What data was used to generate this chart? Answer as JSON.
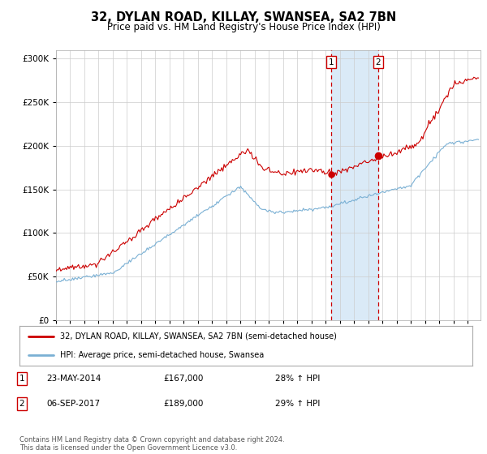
{
  "title": "32, DYLAN ROAD, KILLAY, SWANSEA, SA2 7BN",
  "subtitle": "Price paid vs. HM Land Registry's House Price Index (HPI)",
  "legend_line1": "32, DYLAN ROAD, KILLAY, SWANSEA, SA2 7BN (semi-detached house)",
  "legend_line2": "HPI: Average price, semi-detached house, Swansea",
  "annotation1_date": "23-MAY-2014",
  "annotation1_price": "£167,000",
  "annotation1_hpi": "28% ↑ HPI",
  "annotation1_year": 2014.38,
  "annotation1_value": 167000,
  "annotation2_date": "06-SEP-2017",
  "annotation2_price": "£189,000",
  "annotation2_hpi": "29% ↑ HPI",
  "annotation2_year": 2017.67,
  "annotation2_value": 189000,
  "red_color": "#cc0000",
  "blue_color": "#7ab0d4",
  "shade_color": "#daeaf7",
  "background_color": "#ffffff",
  "grid_color": "#cccccc",
  "ylim": [
    0,
    310000
  ],
  "xlim_start": 1995,
  "xlim_end": 2024.9,
  "footer": "Contains HM Land Registry data © Crown copyright and database right 2024.\nThis data is licensed under the Open Government Licence v3.0."
}
